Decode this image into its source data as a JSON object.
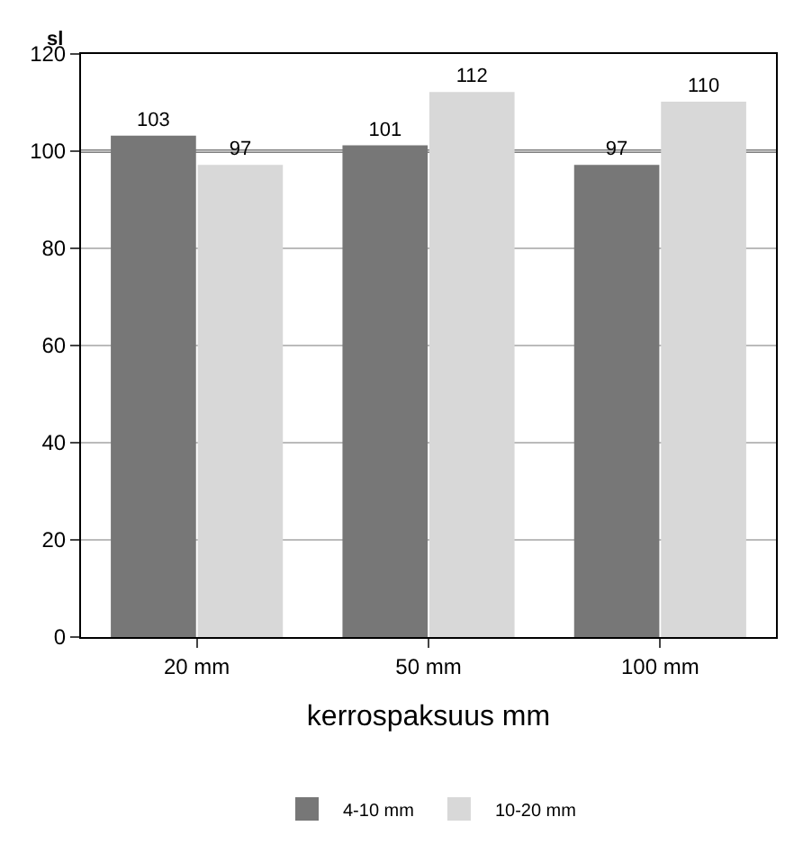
{
  "chart_data": {
    "type": "bar",
    "ylabel": "sl",
    "xlabel": "kerrospaksuus mm",
    "categories": [
      "20 mm",
      "50 mm",
      "100 mm"
    ],
    "series": [
      {
        "name": "4-10 mm",
        "color": "#777777",
        "values": [
          103,
          101,
          97
        ]
      },
      {
        "name": "10-20 mm",
        "color": "#d8d8d8",
        "values": [
          97,
          112,
          110
        ]
      }
    ],
    "ylim": [
      0,
      120
    ],
    "yticks": [
      0,
      20,
      40,
      60,
      80,
      100,
      120
    ],
    "ref_lines": [
      {
        "axis": "y",
        "value": 100,
        "color": "#000000"
      }
    ],
    "grid": "y",
    "legend": "bottom",
    "data_labels": true
  }
}
